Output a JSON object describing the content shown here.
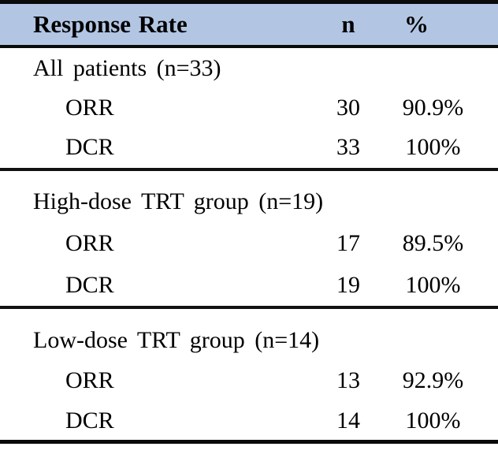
{
  "table": {
    "header": {
      "label": "Response Rate",
      "n": "n",
      "pct": "%"
    },
    "sections": [
      {
        "group": "All patients (n=33)",
        "rows": [
          {
            "label": "ORR",
            "n": "30",
            "pct": "90.9%"
          },
          {
            "label": "DCR",
            "n": "33",
            "pct": "100%"
          }
        ]
      },
      {
        "group": "High-dose TRT group (n=19)",
        "rows": [
          {
            "label": "ORR",
            "n": "17",
            "pct": "89.5%"
          },
          {
            "label": "DCR",
            "n": "19",
            "pct": "100%"
          }
        ]
      },
      {
        "group": "Low-dose TRT group (n=14)",
        "rows": [
          {
            "label": "ORR",
            "n": "13",
            "pct": "92.9%"
          },
          {
            "label": "DCR",
            "n": "14",
            "pct": "100%"
          }
        ]
      }
    ],
    "colors": {
      "header_bg": "#b2c6e3",
      "rule": "#0a0a0a"
    }
  }
}
